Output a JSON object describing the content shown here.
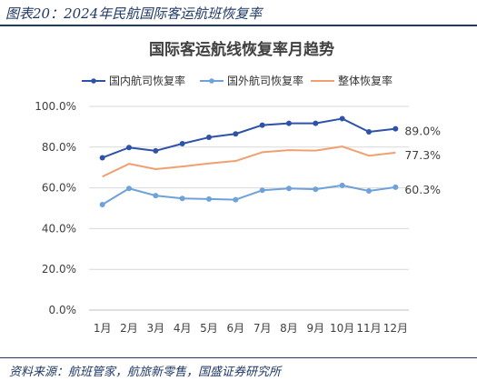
{
  "figure_caption": "图表20：2024年民航国际客运航班恢复率",
  "source_note": "资料来源：航班管家，航旅新零售，国盛证券研究所",
  "colors": {
    "brand": "#1f3864",
    "series_domestic": "#2e52a8",
    "series_foreign": "#6ea2d8",
    "series_overall": "#f0a070",
    "grid": "#d9d9d9"
  },
  "chart_data": {
    "type": "line",
    "title": "国际客运航线恢复率月趋势",
    "categories": [
      "1月",
      "2月",
      "3月",
      "4月",
      "5月",
      "6月",
      "7月",
      "8月",
      "9月",
      "10月",
      "11月",
      "12月"
    ],
    "ylim": [
      0,
      100
    ],
    "yticks": [
      "0.0%",
      "20.0%",
      "40.0%",
      "60.0%",
      "80.0%",
      "100.0%"
    ],
    "grid": true,
    "legend_position": "top",
    "series": [
      {
        "name": "国内航司恢复率",
        "values": [
          74.8,
          79.8,
          78.2,
          81.7,
          84.8,
          86.5,
          90.8,
          91.7,
          91.7,
          94.0,
          87.5,
          89.0
        ],
        "end_label": "89.0%"
      },
      {
        "name": "国外航司恢复率",
        "values": [
          51.8,
          59.7,
          56.2,
          54.8,
          54.5,
          54.2,
          58.8,
          59.7,
          59.3,
          61.2,
          58.5,
          60.3
        ],
        "end_label": "60.3%"
      },
      {
        "name": "整体恢复率",
        "values": [
          65.5,
          71.8,
          69.2,
          70.5,
          72.0,
          73.2,
          77.5,
          78.5,
          78.3,
          80.3,
          75.8,
          77.3
        ],
        "end_label": "77.3%"
      }
    ]
  }
}
